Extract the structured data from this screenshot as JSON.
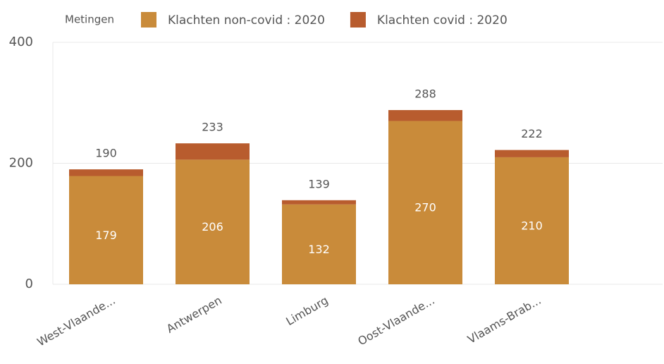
{
  "chart_data": {
    "type": "stacked_bar",
    "legend_title": "Metingen",
    "categories": [
      "West-Vlaande...",
      "Antwerpen",
      "Limburg",
      "Oost-Vlaande...",
      "Vlaams-Brab..."
    ],
    "series": [
      {
        "name": "Klachten non-covid : 2020",
        "color": "#c98b3a",
        "values": [
          179,
          206,
          132,
          270,
          210
        ]
      },
      {
        "name": "Klachten covid : 2020",
        "color": "#b85c2e",
        "values": [
          11,
          27,
          7,
          18,
          12
        ]
      }
    ],
    "total_labels": [
      190,
      233,
      139,
      288,
      222
    ],
    "ylim": [
      0,
      400
    ],
    "yticks": [
      0,
      200,
      400
    ],
    "grid": true,
    "legend": "top"
  }
}
